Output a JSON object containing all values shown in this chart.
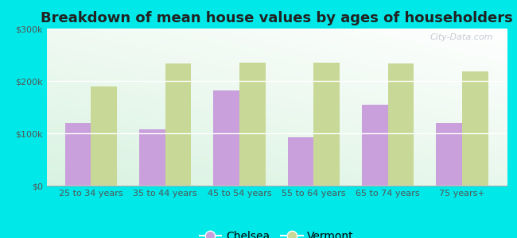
{
  "title": "Breakdown of mean house values by ages of householders",
  "categories": [
    "25 to 34 years",
    "35 to 44 years",
    "45 to 54 years",
    "55 to 64 years",
    "65 to 74 years",
    "75 years+"
  ],
  "chelsea_values": [
    120000,
    107000,
    182000,
    93000,
    155000,
    120000
  ],
  "vermont_values": [
    190000,
    233000,
    235000,
    235000,
    233000,
    218000
  ],
  "chelsea_color": "#c9a0dc",
  "vermont_color": "#c8d896",
  "background_color": "#00e8e8",
  "ylim": [
    0,
    300000
  ],
  "yticks": [
    0,
    100000,
    200000,
    300000
  ],
  "ytick_labels": [
    "$0",
    "$100k",
    "$200k",
    "$300k"
  ],
  "legend_chelsea": "Chelsea",
  "legend_vermont": "Vermont",
  "bar_width": 0.35,
  "title_fontsize": 13,
  "tick_fontsize": 8,
  "legend_fontsize": 10,
  "watermark": "City-Data.com"
}
